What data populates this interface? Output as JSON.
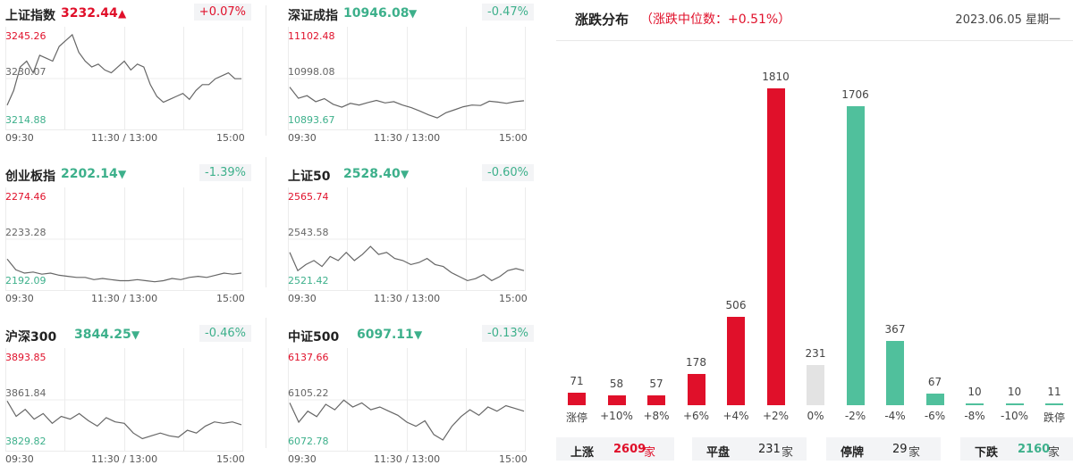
{
  "indices": [
    {
      "id": "sh",
      "name": "上证指数",
      "value": "3232.44",
      "arrow": "▲",
      "dir": "up",
      "change": "+0.07%",
      "y_top": "3245.26",
      "y_mid": "3230.07",
      "y_bot": "3214.88",
      "series": [
        3221,
        3226,
        3234,
        3236,
        3232,
        3238,
        3237,
        3236,
        3241,
        3243,
        3245,
        3239,
        3236,
        3234,
        3235,
        3233,
        3232,
        3234,
        3236,
        3233,
        3235,
        3234,
        3228,
        3224,
        3222,
        3223,
        3224,
        3225,
        3223,
        3226,
        3228,
        3228,
        3230,
        3231,
        3232,
        3230,
        3230
      ]
    },
    {
      "id": "sz",
      "name": "深证成指",
      "value": "10946.08",
      "arrow": "▼",
      "dir": "down",
      "change": "-0.47%",
      "y_top": "11102.48",
      "y_mid": "10998.08",
      "y_bot": "10893.67",
      "series": [
        10978,
        10952,
        10958,
        10944,
        10951,
        10938,
        10931,
        10940,
        10936,
        10942,
        10947,
        10941,
        10944,
        10936,
        10930,
        10922,
        10913,
        10906,
        10918,
        10925,
        10932,
        10936,
        10935,
        10945,
        10943,
        10940,
        10944,
        10946
      ]
    },
    {
      "id": "cy",
      "name": "创业板指",
      "value": "2202.14",
      "arrow": "▼",
      "dir": "down",
      "change": "-1.39%",
      "y_top": "2274.46",
      "y_mid": "2233.28",
      "y_bot": "2192.09",
      "series": [
        2215,
        2205,
        2202,
        2203,
        2201,
        2202,
        2200,
        2199,
        2198,
        2198,
        2196,
        2197,
        2196,
        2195,
        2195,
        2196,
        2195,
        2194,
        2195,
        2197,
        2196,
        2198,
        2199,
        2198,
        2200,
        2202,
        2201,
        2202
      ]
    },
    {
      "id": "sz50",
      "name": "上证50",
      "value": "2528.40",
      "arrow": "▼",
      "dir": "down",
      "change": "-0.60%",
      "y_top": "2565.74",
      "y_mid": "2543.58",
      "y_bot": "2521.42",
      "series": [
        2537,
        2528,
        2531,
        2533,
        2530,
        2535,
        2533,
        2537,
        2533,
        2536,
        2540,
        2536,
        2537,
        2534,
        2533,
        2531,
        2532,
        2534,
        2531,
        2530,
        2527,
        2525,
        2523,
        2524,
        2526,
        2523,
        2525,
        2528,
        2529,
        2528
      ]
    },
    {
      "id": "hs300",
      "name": "沪深300",
      "value": "3844.25",
      "arrow": "▼",
      "dir": "down",
      "change": "-0.46%",
      "y_top": "3893.85",
      "y_mid": "3861.84",
      "y_bot": "3829.82",
      "series": [
        3861,
        3850,
        3855,
        3848,
        3852,
        3845,
        3850,
        3848,
        3852,
        3847,
        3843,
        3849,
        3846,
        3845,
        3838,
        3834,
        3836,
        3838,
        3836,
        3835,
        3840,
        3838,
        3843,
        3846,
        3845,
        3846,
        3844
      ]
    },
    {
      "id": "zz500",
      "name": "中证500",
      "value": "6097.11",
      "arrow": "▼",
      "dir": "down",
      "change": "-0.13%",
      "y_top": "6137.66",
      "y_mid": "6105.22",
      "y_bot": "6072.78",
      "series": [
        6103,
        6089,
        6097,
        6093,
        6102,
        6098,
        6105,
        6100,
        6103,
        6098,
        6100,
        6097,
        6094,
        6089,
        6086,
        6090,
        6080,
        6076,
        6086,
        6093,
        6098,
        6094,
        6100,
        6097,
        6101,
        6099,
        6097
      ]
    }
  ],
  "time_labels": {
    "start": "09:30",
    "mid": "11:30 / 13:00",
    "end": "15:00"
  },
  "distribution": {
    "title": "涨跌分布",
    "subtitle": "（涨跌中位数：+0.51%）",
    "date": "2023.06.05 星期一",
    "bars": [
      {
        "label": "涨停",
        "count": 71,
        "kind": "up"
      },
      {
        "label": "+10%",
        "count": 58,
        "kind": "up"
      },
      {
        "label": "+8%",
        "count": 57,
        "kind": "up"
      },
      {
        "label": "+6%",
        "count": 178,
        "kind": "up"
      },
      {
        "label": "+4%",
        "count": 506,
        "kind": "up"
      },
      {
        "label": "+2%",
        "count": 1810,
        "kind": "up"
      },
      {
        "label": "0%",
        "count": 231,
        "kind": "flat"
      },
      {
        "label": "-2%",
        "count": 1706,
        "kind": "down"
      },
      {
        "label": "-4%",
        "count": 367,
        "kind": "down"
      },
      {
        "label": "-6%",
        "count": 67,
        "kind": "down"
      },
      {
        "label": "-8%",
        "count": 10,
        "kind": "down"
      },
      {
        "label": "-10%",
        "count": 10,
        "kind": "down"
      },
      {
        "label": "跌停",
        "count": 11,
        "kind": "down"
      }
    ],
    "summary": [
      {
        "label": "上涨",
        "value": "2609",
        "unit": "家",
        "kind": "up"
      },
      {
        "label": "平盘",
        "value": "231",
        "unit": "家",
        "kind": "flat"
      },
      {
        "label": "停牌",
        "value": "29",
        "unit": "家",
        "kind": "flat"
      },
      {
        "label": "下跌",
        "value": "2160",
        "unit": "家",
        "kind": "down"
      }
    ]
  },
  "colors": {
    "up": "#e0102a",
    "down": "#50c09c",
    "flat": "#e3e3e3",
    "up_text": "#e0102a",
    "down_text": "#3db08b"
  }
}
